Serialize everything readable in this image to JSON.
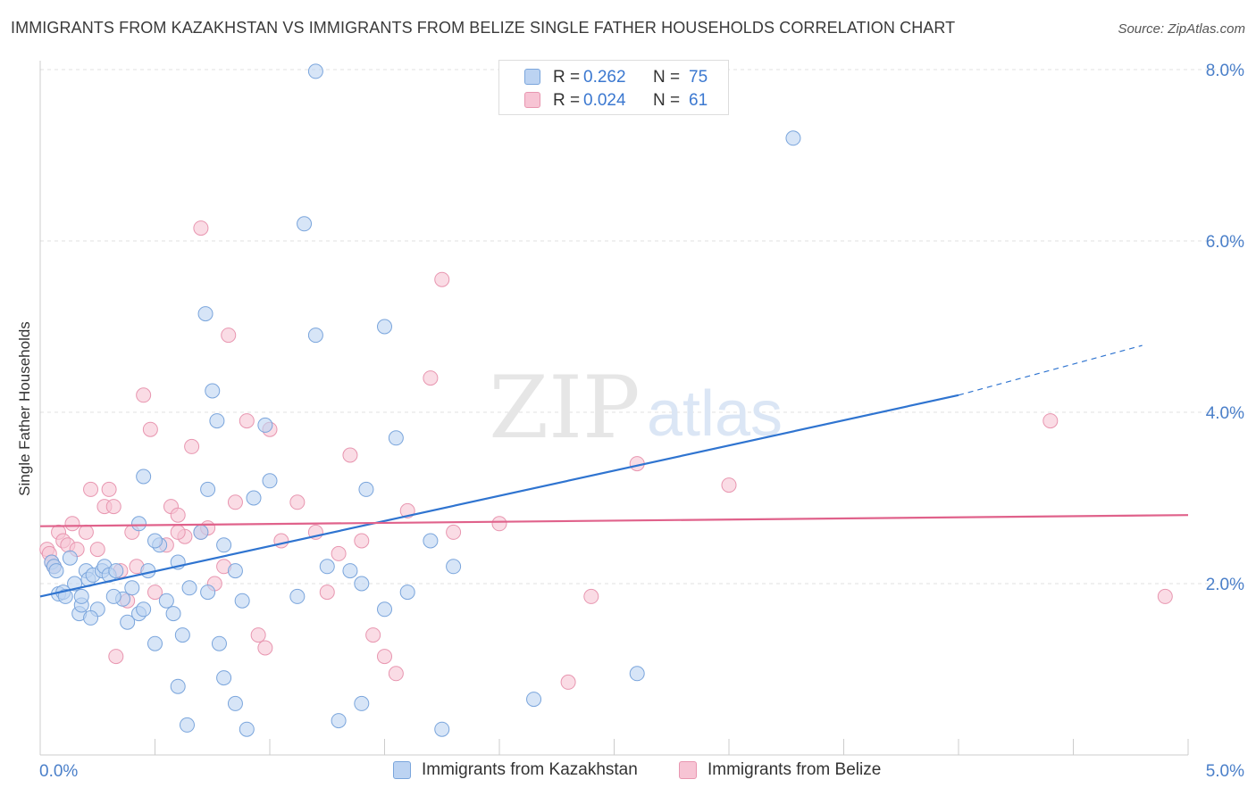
{
  "header": {
    "title": "IMMIGRANTS FROM KAZAKHSTAN VS IMMIGRANTS FROM BELIZE SINGLE FATHER HOUSEHOLDS CORRELATION CHART",
    "source": "Source: ZipAtlas.com"
  },
  "watermark": {
    "zip": "ZIP",
    "atlas": "atlas"
  },
  "legend": {
    "r_label": "R =",
    "n_label": "N =",
    "rows": [
      {
        "r": "0.262",
        "n": "75"
      },
      {
        "r": "0.024",
        "n": "61"
      }
    ]
  },
  "colors": {
    "blue_fill": "#bcd3f2",
    "blue_stroke": "#7aa5dc",
    "blue_line": "#2f74d0",
    "pink_fill": "#f7c4d4",
    "pink_stroke": "#e896b0",
    "pink_line": "#e0628b",
    "tick_text": "#4a7fc9",
    "grid": "#e0e0e0"
  },
  "chart_data": {
    "type": "scatter",
    "title": "IMMIGRANTS FROM KAZAKHSTAN VS IMMIGRANTS FROM BELIZE SINGLE FATHER HOUSEHOLDS CORRELATION CHART",
    "xlabel": "",
    "ylabel": "Single Father Households",
    "xlim": [
      0,
      5.0
    ],
    "ylim": [
      0,
      8.0
    ],
    "x_tick_labels": [
      "0.0%",
      "5.0%"
    ],
    "y_ticks": [
      2.0,
      4.0,
      6.0,
      8.0
    ],
    "y_tick_labels": [
      "2.0%",
      "4.0%",
      "6.0%",
      "8.0%"
    ],
    "grid": true,
    "legend_position": "top-center",
    "series": [
      {
        "name": "Immigrants from Kazakhstan",
        "color": "#7aa5dc",
        "trend": {
          "x0": 0.0,
          "y0": 1.85,
          "x1": 4.0,
          "y1": 4.2,
          "dashed_to_x": 4.8,
          "dashed_to_y": 4.78
        },
        "points": [
          [
            0.05,
            2.25
          ],
          [
            0.06,
            2.2
          ],
          [
            0.07,
            2.15
          ],
          [
            0.08,
            1.88
          ],
          [
            0.1,
            1.9
          ],
          [
            0.11,
            1.85
          ],
          [
            0.13,
            2.3
          ],
          [
            0.15,
            2.0
          ],
          [
            0.17,
            1.65
          ],
          [
            0.18,
            1.75
          ],
          [
            0.2,
            2.15
          ],
          [
            0.21,
            2.05
          ],
          [
            0.23,
            2.1
          ],
          [
            0.25,
            1.7
          ],
          [
            0.27,
            2.15
          ],
          [
            0.28,
            2.2
          ],
          [
            0.3,
            2.1
          ],
          [
            0.33,
            2.15
          ],
          [
            0.36,
            1.82
          ],
          [
            0.4,
            1.95
          ],
          [
            0.43,
            1.65
          ],
          [
            0.45,
            1.7
          ],
          [
            0.47,
            2.15
          ],
          [
            0.5,
            1.3
          ],
          [
            0.52,
            2.45
          ],
          [
            0.55,
            1.8
          ],
          [
            0.6,
            2.25
          ],
          [
            0.62,
            1.4
          ],
          [
            0.65,
            1.95
          ],
          [
            0.7,
            2.6
          ],
          [
            0.73,
            1.9
          ],
          [
            0.78,
            1.3
          ],
          [
            0.8,
            2.45
          ],
          [
            0.85,
            2.15
          ],
          [
            0.88,
            1.8
          ],
          [
            0.93,
            3.0
          ],
          [
            0.98,
            3.85
          ],
          [
            1.0,
            3.2
          ],
          [
            1.2,
            4.9
          ],
          [
            1.25,
            2.2
          ],
          [
            1.35,
            2.15
          ],
          [
            1.4,
            2.0
          ],
          [
            1.42,
            3.1
          ],
          [
            1.5,
            1.7
          ],
          [
            1.55,
            3.7
          ],
          [
            1.7,
            2.5
          ],
          [
            1.8,
            2.2
          ],
          [
            0.32,
            1.85
          ],
          [
            0.38,
            1.55
          ],
          [
            0.45,
            3.25
          ],
          [
            0.5,
            2.5
          ],
          [
            0.6,
            0.8
          ],
          [
            0.64,
            0.35
          ],
          [
            0.72,
            5.15
          ],
          [
            0.75,
            4.25
          ],
          [
            0.77,
            3.9
          ],
          [
            0.85,
            0.6
          ],
          [
            0.9,
            0.3
          ],
          [
            1.12,
            1.85
          ],
          [
            1.15,
            6.2
          ],
          [
            1.2,
            7.98
          ],
          [
            1.3,
            0.4
          ],
          [
            1.4,
            0.6
          ],
          [
            1.5,
            5.0
          ],
          [
            1.6,
            1.9
          ],
          [
            1.75,
            0.3
          ],
          [
            2.15,
            0.65
          ],
          [
            2.6,
            0.95
          ],
          [
            3.28,
            7.2
          ],
          [
            0.43,
            2.7
          ],
          [
            0.18,
            1.85
          ],
          [
            0.22,
            1.6
          ],
          [
            0.73,
            3.1
          ],
          [
            0.8,
            0.9
          ],
          [
            0.58,
            1.65
          ]
        ]
      },
      {
        "name": "Immigrants from Belize",
        "color": "#e896b0",
        "trend": {
          "x0": 0.0,
          "y0": 2.67,
          "x1": 5.0,
          "y1": 2.8
        },
        "points": [
          [
            0.03,
            2.4
          ],
          [
            0.04,
            2.35
          ],
          [
            0.05,
            2.25
          ],
          [
            0.06,
            2.2
          ],
          [
            0.08,
            2.6
          ],
          [
            0.1,
            2.5
          ],
          [
            0.12,
            2.45
          ],
          [
            0.14,
            2.7
          ],
          [
            0.16,
            2.4
          ],
          [
            0.2,
            2.6
          ],
          [
            0.22,
            3.1
          ],
          [
            0.25,
            2.4
          ],
          [
            0.28,
            2.9
          ],
          [
            0.3,
            3.1
          ],
          [
            0.32,
            2.9
          ],
          [
            0.35,
            2.15
          ],
          [
            0.38,
            1.8
          ],
          [
            0.4,
            2.6
          ],
          [
            0.42,
            2.2
          ],
          [
            0.45,
            4.2
          ],
          [
            0.48,
            3.8
          ],
          [
            0.5,
            1.9
          ],
          [
            0.55,
            2.45
          ],
          [
            0.57,
            2.9
          ],
          [
            0.6,
            2.8
          ],
          [
            0.63,
            2.55
          ],
          [
            0.66,
            3.6
          ],
          [
            0.7,
            2.6
          ],
          [
            0.73,
            2.65
          ],
          [
            0.76,
            2.0
          ],
          [
            0.8,
            2.2
          ],
          [
            0.82,
            4.9
          ],
          [
            0.85,
            2.95
          ],
          [
            0.9,
            3.9
          ],
          [
            0.95,
            1.4
          ],
          [
            0.98,
            1.25
          ],
          [
            1.0,
            3.8
          ],
          [
            1.05,
            2.5
          ],
          [
            1.12,
            2.95
          ],
          [
            1.2,
            2.6
          ],
          [
            1.25,
            1.9
          ],
          [
            1.3,
            2.35
          ],
          [
            1.35,
            3.5
          ],
          [
            1.4,
            2.5
          ],
          [
            1.45,
            1.4
          ],
          [
            1.5,
            1.15
          ],
          [
            1.55,
            0.95
          ],
          [
            1.6,
            2.85
          ],
          [
            1.7,
            4.4
          ],
          [
            1.75,
            5.55
          ],
          [
            1.8,
            2.6
          ],
          [
            2.0,
            2.7
          ],
          [
            2.3,
            0.85
          ],
          [
            2.4,
            1.85
          ],
          [
            2.6,
            3.4
          ],
          [
            3.0,
            3.15
          ],
          [
            0.7,
            6.15
          ],
          [
            4.4,
            3.9
          ],
          [
            4.9,
            1.85
          ],
          [
            0.33,
            1.15
          ],
          [
            0.6,
            2.6
          ]
        ]
      }
    ]
  },
  "bottom_legend": [
    {
      "label": "Immigrants from Kazakhstan"
    },
    {
      "label": "Immigrants from Belize"
    }
  ]
}
